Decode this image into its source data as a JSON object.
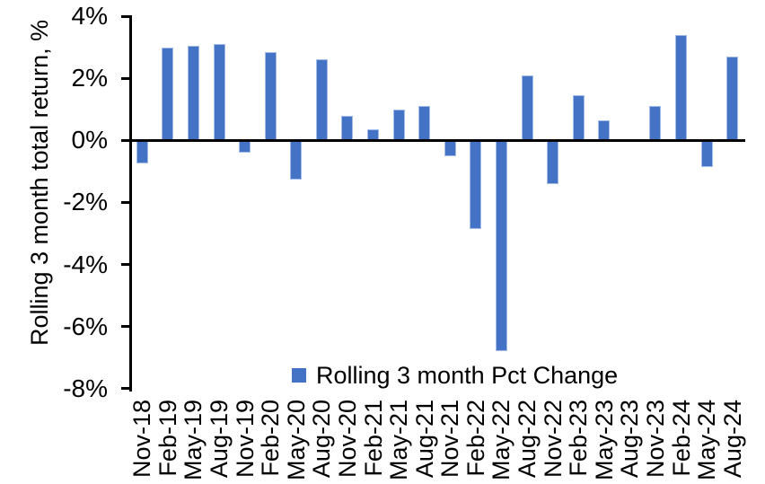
{
  "chart_data": {
    "type": "bar",
    "title": "",
    "xlabel": "",
    "ylabel": "Rolling 3 month total return, %",
    "legend": "Rolling 3 month Pct Change",
    "legend_position": "bottom-center-inside",
    "grid": false,
    "ylim": [
      -8,
      4
    ],
    "yticks": [
      4,
      2,
      0,
      -2,
      -4,
      -6,
      -8
    ],
    "ytick_labels": [
      "4%",
      "2%",
      "0%",
      "-2%",
      "-4%",
      "-6%",
      "-8%"
    ],
    "colors": {
      "bar_fill": "#4472C4",
      "bar_border": "#A3BCE8",
      "axis": "#000000",
      "text": "#000000",
      "background": "#FFFFFF"
    },
    "categories": [
      "Nov-18",
      "Feb-19",
      "May-19",
      "Aug-19",
      "Nov-19",
      "Feb-20",
      "May-20",
      "Aug-20",
      "Nov-20",
      "Feb-21",
      "May-21",
      "Aug-21",
      "Nov-21",
      "Feb-22",
      "May-22",
      "Aug-22",
      "Nov-22",
      "Feb-23",
      "May-23",
      "Aug-23",
      "Nov-23",
      "Feb-24",
      "May-24",
      "Aug-24"
    ],
    "values": [
      -0.75,
      3.0,
      3.05,
      3.1,
      -0.4,
      2.85,
      -1.25,
      2.6,
      0.8,
      0.35,
      1.0,
      1.1,
      -0.5,
      -2.85,
      -6.8,
      2.1,
      -1.4,
      1.45,
      0.65,
      0.0,
      1.1,
      3.4,
      -0.85,
      2.7
    ]
  }
}
